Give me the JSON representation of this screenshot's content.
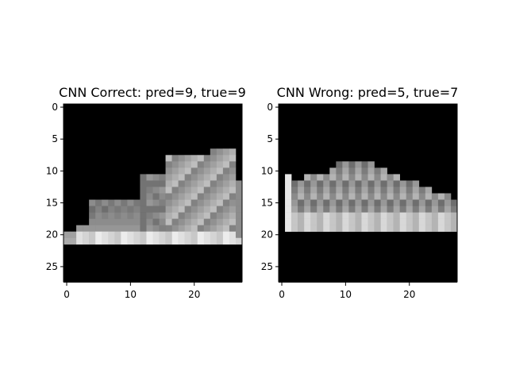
{
  "figure": {
    "background": "#ffffff"
  },
  "chart_data": [
    {
      "type": "heatmap",
      "title": "CNN Correct: pred=9, true=9",
      "xlabel": "",
      "ylabel": "",
      "xlim": [
        -0.5,
        27.5
      ],
      "ylim": [
        27.5,
        -0.5
      ],
      "x_ticks": [
        0,
        10,
        20
      ],
      "y_ticks": [
        0,
        5,
        10,
        15,
        20,
        25
      ],
      "colormap": "gray",
      "image": "ankle-boot-sneaker"
    },
    {
      "type": "heatmap",
      "title": "CNN Wrong: pred=5, true=7",
      "xlabel": "",
      "ylabel": "",
      "xlim": [
        -0.5,
        27.5
      ],
      "ylim": [
        27.5,
        -0.5
      ],
      "x_ticks": [
        0,
        10,
        20
      ],
      "y_ticks": [
        0,
        5,
        10,
        15,
        20,
        25
      ],
      "colormap": "gray",
      "image": "low-top-sneaker"
    }
  ]
}
